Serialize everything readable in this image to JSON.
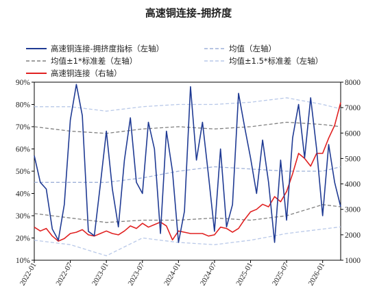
{
  "chart_data": {
    "type": "line",
    "title": "高速铜连接-拥挤度",
    "legend_placement": "top",
    "grid": false,
    "x_tick_labels": [
      "2022-01",
      "2022-07",
      "2023-01",
      "2023-07",
      "2024-01",
      "2024-07",
      "2025-01",
      "2025-07",
      "2026-01"
    ],
    "xlim": [
      "2022-01",
      "2026-04"
    ],
    "y_left": {
      "ticks": [
        "10%",
        "20%",
        "30%",
        "40%",
        "50%",
        "60%",
        "70%",
        "80%",
        "90%"
      ],
      "range": [
        10,
        90
      ]
    },
    "y_right": {
      "ticks": [
        "1000",
        "2000",
        "3000",
        "4000",
        "5000",
        "6000",
        "7000",
        "8000"
      ],
      "range": [
        1000,
        8000
      ]
    },
    "series": [
      {
        "name": "高速铜连接-拥挤度指标（左轴）",
        "axis": "left",
        "color": "#1f3a93",
        "style": "solid",
        "x": [
          "2022-01",
          "2022-02",
          "2022-03",
          "2022-04",
          "2022-05",
          "2022-06",
          "2022-07",
          "2022-08",
          "2022-09",
          "2022-10",
          "2022-11",
          "2022-12",
          "2023-01",
          "2023-02",
          "2023-03",
          "2023-04",
          "2023-05",
          "2023-06",
          "2023-07",
          "2023-08",
          "2023-09",
          "2023-10",
          "2023-11",
          "2023-12",
          "2024-01",
          "2024-02",
          "2024-03",
          "2024-04",
          "2024-05",
          "2024-06",
          "2024-07",
          "2024-08",
          "2024-09",
          "2024-10",
          "2024-11",
          "2024-12",
          "2025-01",
          "2025-02",
          "2025-03",
          "2025-04",
          "2025-05",
          "2025-06",
          "2025-07",
          "2025-08",
          "2025-09",
          "2025-10",
          "2025-11",
          "2025-12",
          "2026-01",
          "2026-02",
          "2026-03",
          "2026-04"
        ],
        "values": [
          57,
          45,
          42,
          24,
          19,
          35,
          73,
          89,
          75,
          23,
          21,
          44,
          68,
          42,
          25,
          55,
          74,
          45,
          40,
          72,
          60,
          22,
          68,
          50,
          18,
          32,
          88,
          55,
          72,
          48,
          23,
          60,
          25,
          35,
          85,
          70,
          56,
          40,
          64,
          45,
          18,
          55,
          28,
          65,
          80,
          56,
          83,
          60,
          30,
          62,
          45,
          34
        ]
      },
      {
        "name": "均值（左轴）",
        "axis": "left",
        "color": "#9db0d8",
        "style": "dashed",
        "x": [
          "2022-01",
          "2022-07",
          "2023-01",
          "2023-07",
          "2024-01",
          "2024-07",
          "2025-01",
          "2025-07",
          "2026-01",
          "2026-04"
        ],
        "values": [
          45,
          45,
          45,
          47,
          50,
          52,
          51,
          50,
          50,
          52
        ]
      },
      {
        "name": "均值±1*标准差（左轴）",
        "axis": "left",
        "color": "#7f7f7f",
        "style": "dashed",
        "x": [
          "2022-01",
          "2022-07",
          "2023-01",
          "2023-07",
          "2024-01",
          "2024-07",
          "2025-01",
          "2025-07",
          "2026-01",
          "2026-04"
        ],
        "values_upper": [
          70,
          68,
          67,
          69,
          70,
          69,
          70,
          72,
          71,
          70
        ],
        "values_lower": [
          31,
          29,
          27,
          28,
          28,
          29,
          28,
          30,
          35,
          34
        ]
      },
      {
        "name": "均值±1.5*标准差（左轴）",
        "axis": "left",
        "color": "#b8c8e8",
        "style": "dashed",
        "x": [
          "2022-01",
          "2022-07",
          "2023-01",
          "2023-07",
          "2024-01",
          "2024-07",
          "2025-01",
          "2025-07",
          "2026-01",
          "2026-04"
        ],
        "values_upper": [
          79,
          79,
          77,
          79,
          80,
          80,
          81,
          83,
          80,
          78
        ],
        "values_lower": [
          19,
          17,
          12,
          20,
          18,
          17,
          19,
          22,
          24,
          25
        ]
      },
      {
        "name": "高速铜连接（右轴）",
        "axis": "right",
        "color": "#e02020",
        "style": "solid",
        "x": [
          "2022-01",
          "2022-02",
          "2022-03",
          "2022-04",
          "2022-05",
          "2022-06",
          "2022-07",
          "2022-08",
          "2022-09",
          "2022-10",
          "2022-11",
          "2022-12",
          "2023-01",
          "2023-02",
          "2023-03",
          "2023-04",
          "2023-05",
          "2023-06",
          "2023-07",
          "2023-08",
          "2023-09",
          "2023-10",
          "2023-11",
          "2023-12",
          "2024-01",
          "2024-02",
          "2024-03",
          "2024-04",
          "2024-05",
          "2024-06",
          "2024-07",
          "2024-08",
          "2024-09",
          "2024-10",
          "2024-11",
          "2024-12",
          "2025-01",
          "2025-02",
          "2025-03",
          "2025-04",
          "2025-05",
          "2025-06",
          "2025-07",
          "2025-08",
          "2025-09",
          "2025-10",
          "2025-11",
          "2025-12",
          "2026-01",
          "2026-02",
          "2026-03",
          "2026-04"
        ],
        "values": [
          2300,
          2150,
          2250,
          1950,
          1750,
          1850,
          2050,
          2100,
          2200,
          2000,
          1950,
          2050,
          2150,
          2050,
          2000,
          2150,
          2350,
          2250,
          2450,
          2300,
          2400,
          2500,
          2350,
          1800,
          2150,
          2100,
          2050,
          2050,
          2050,
          1950,
          2000,
          2300,
          2250,
          2100,
          2250,
          2600,
          2900,
          3000,
          3200,
          3100,
          3500,
          3300,
          3700,
          4400,
          5200,
          5000,
          4700,
          5200,
          5200,
          5800,
          6300,
          7200
        ]
      }
    ]
  }
}
